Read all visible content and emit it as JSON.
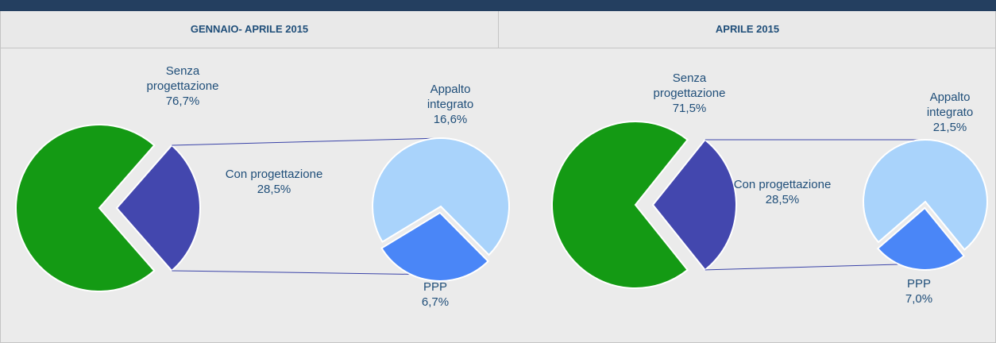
{
  "chart_data": [
    {
      "type": "pie_of_pie",
      "title": "GENNAIO- APRILE 2015",
      "categories": [
        "Senza progettazione",
        "Con progettazione"
      ],
      "values": [
        76.7,
        28.5
      ],
      "value_labels": [
        "76,7%",
        "28,5%"
      ],
      "colors": [
        "#149a14",
        "#4347ae"
      ],
      "sub": {
        "categories": [
          "Appalto integrato",
          "PPP"
        ],
        "values": [
          16.6,
          6.7
        ],
        "value_labels": [
          "16,6%",
          "6,7%"
        ],
        "colors": [
          "#a9d3fb",
          "#4a86f7"
        ]
      }
    },
    {
      "type": "pie_of_pie",
      "title": "APRILE 2015",
      "categories": [
        "Senza progettazione",
        "Con progettazione"
      ],
      "values": [
        71.5,
        28.5
      ],
      "value_labels": [
        "71,5%",
        "28,5%"
      ],
      "colors": [
        "#149a14",
        "#4347ae"
      ],
      "sub": {
        "categories": [
          "Appalto integrato",
          "PPP"
        ],
        "values": [
          21.5,
          7.0
        ],
        "value_labels": [
          "21,5%",
          "7,0%"
        ],
        "colors": [
          "#a9d3fb",
          "#4a86f7"
        ]
      }
    }
  ]
}
